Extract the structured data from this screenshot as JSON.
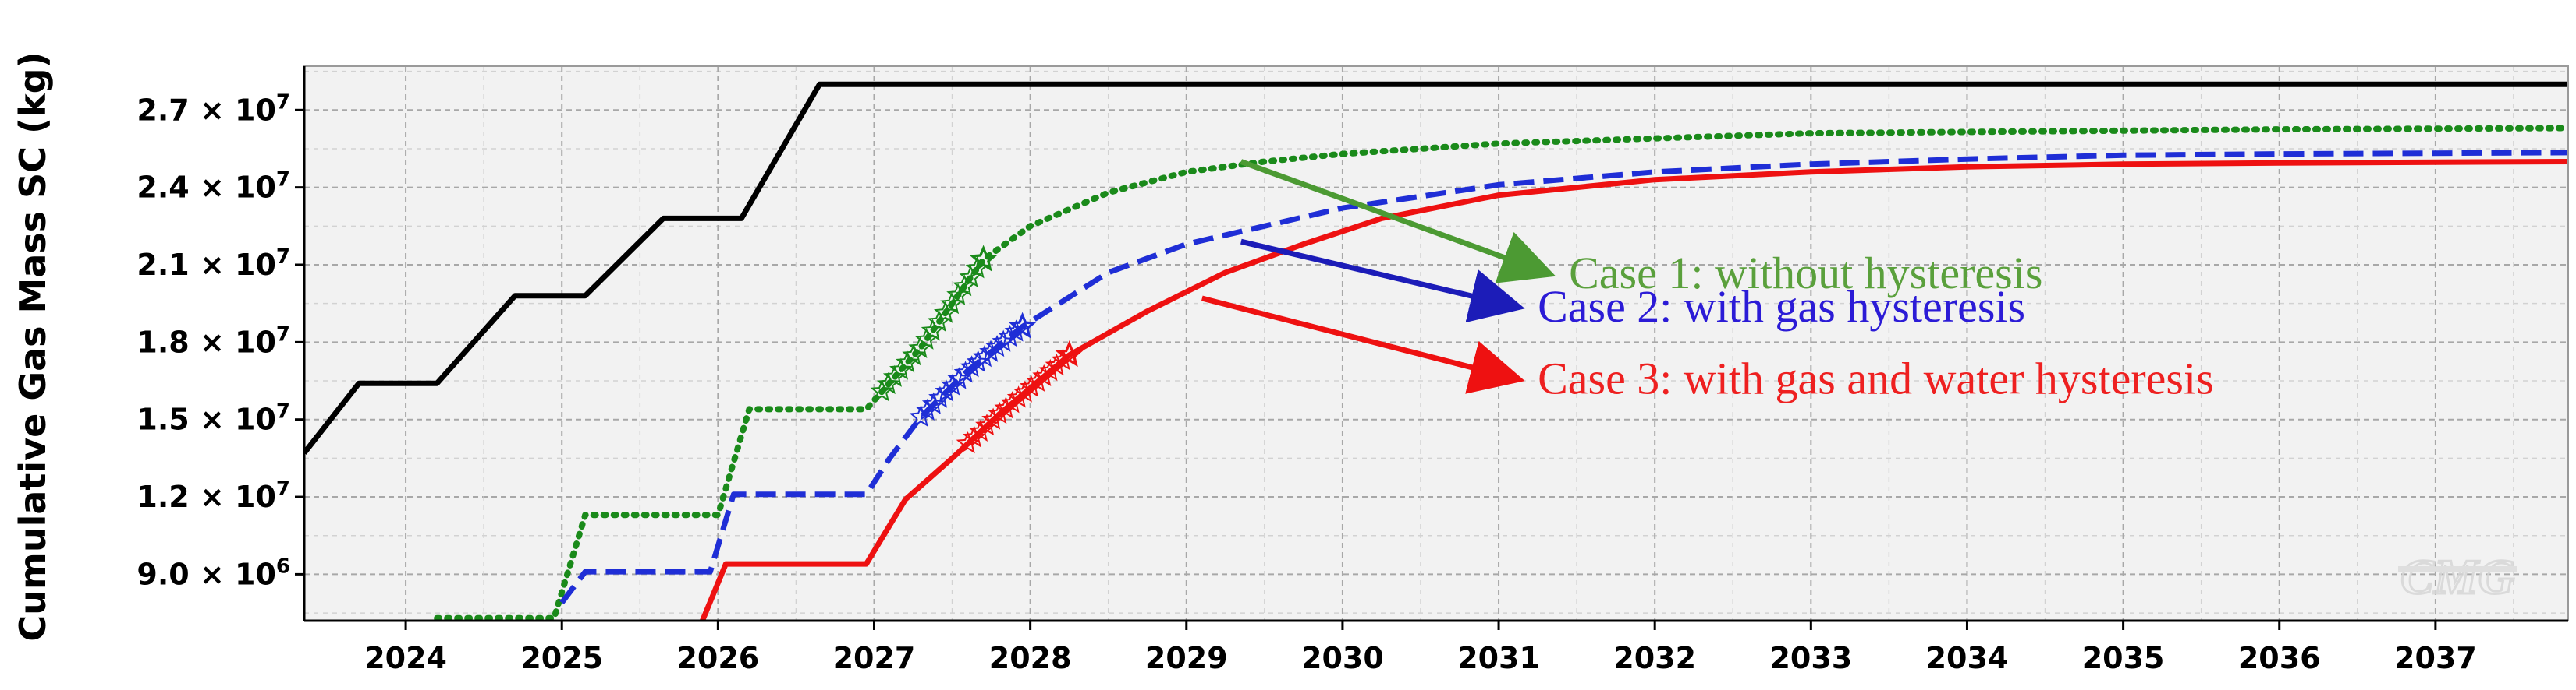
{
  "chart_data": {
    "type": "line",
    "ylabel": "Cumulative Gas Mass SC (kg)",
    "xlabel": "",
    "xlim": [
      2023.35,
      2037.85
    ],
    "ylim": [
      7200000,
      28700000
    ],
    "y_ticks": [
      {
        "value": 9000000,
        "mantissa": "9.0",
        "exponent": "6"
      },
      {
        "value": 12000000,
        "mantissa": "1.2",
        "exponent": "7"
      },
      {
        "value": 15000000,
        "mantissa": "1.5",
        "exponent": "7"
      },
      {
        "value": 18000000,
        "mantissa": "1.8",
        "exponent": "7"
      },
      {
        "value": 21000000,
        "mantissa": "2.1",
        "exponent": "7"
      },
      {
        "value": 24000000,
        "mantissa": "2.4",
        "exponent": "7"
      },
      {
        "value": 27000000,
        "mantissa": "2.7",
        "exponent": "7"
      }
    ],
    "y_tick_prefix": " × 10",
    "x_ticks": [
      "2024",
      "2025",
      "2026",
      "2027",
      "2028",
      "2029",
      "2030",
      "2031",
      "2032",
      "2033",
      "2034",
      "2035",
      "2036",
      "2037"
    ],
    "grid": true,
    "series": [
      {
        "color": "#000000",
        "dash": "solid",
        "points": [
          [
            2023.35,
            13700000
          ],
          [
            2023.7,
            16400000
          ],
          [
            2024.2,
            16400000
          ],
          [
            2024.7,
            19800000
          ],
          [
            2025.15,
            19800000
          ],
          [
            2025.65,
            22800000
          ],
          [
            2026.15,
            22800000
          ],
          [
            2026.65,
            28000000
          ],
          [
            2037.85,
            28000000
          ]
        ]
      },
      {
        "color": "#1a8a1a",
        "dash": "dotted",
        "marker_x": 2027.7,
        "points": [
          [
            2024.2,
            7300000
          ],
          [
            2024.95,
            7300000
          ],
          [
            2025.15,
            11300000
          ],
          [
            2026.0,
            11300000
          ],
          [
            2026.2,
            15400000
          ],
          [
            2026.95,
            15400000
          ],
          [
            2027.3,
            17800000
          ],
          [
            2027.7,
            21200000
          ],
          [
            2028.0,
            22500000
          ],
          [
            2028.5,
            23800000
          ],
          [
            2029.0,
            24600000
          ],
          [
            2029.5,
            25000000
          ],
          [
            2030.0,
            25300000
          ],
          [
            2031.0,
            25700000
          ],
          [
            2032.0,
            25900000
          ],
          [
            2033.0,
            26100000
          ],
          [
            2034.0,
            26150000
          ],
          [
            2035.0,
            26200000
          ],
          [
            2036.0,
            26250000
          ],
          [
            2037.85,
            26300000
          ]
        ]
      },
      {
        "color": "#1f2ed6",
        "dash": "dashed",
        "marker_x": 2027.95,
        "points": [
          [
            2025.0,
            7900000
          ],
          [
            2025.15,
            9100000
          ],
          [
            2025.95,
            9100000
          ],
          [
            2026.1,
            12100000
          ],
          [
            2026.95,
            12100000
          ],
          [
            2027.1,
            13500000
          ],
          [
            2027.3,
            15100000
          ],
          [
            2027.6,
            16900000
          ],
          [
            2027.95,
            18600000
          ],
          [
            2028.5,
            20700000
          ],
          [
            2029.0,
            21800000
          ],
          [
            2029.5,
            22500000
          ],
          [
            2030.0,
            23200000
          ],
          [
            2031.0,
            24100000
          ],
          [
            2032.0,
            24600000
          ],
          [
            2033.0,
            24900000
          ],
          [
            2034.0,
            25100000
          ],
          [
            2035.0,
            25250000
          ],
          [
            2036.0,
            25300000
          ],
          [
            2037.85,
            25350000
          ]
        ]
      },
      {
        "color": "#ee1111",
        "dash": "solid",
        "marker_x": 2028.25,
        "points": [
          [
            2025.9,
            7200000
          ],
          [
            2026.05,
            9400000
          ],
          [
            2026.95,
            9400000
          ],
          [
            2027.2,
            11900000
          ],
          [
            2027.5,
            13500000
          ],
          [
            2027.8,
            15200000
          ],
          [
            2028.25,
            17500000
          ],
          [
            2028.75,
            19200000
          ],
          [
            2029.25,
            20700000
          ],
          [
            2029.75,
            21800000
          ],
          [
            2030.25,
            22800000
          ],
          [
            2031.0,
            23700000
          ],
          [
            2032.0,
            24300000
          ],
          [
            2033.0,
            24600000
          ],
          [
            2034.0,
            24800000
          ],
          [
            2035.0,
            24900000
          ],
          [
            2036.0,
            24950000
          ],
          [
            2037.85,
            25000000
          ]
        ]
      }
    ],
    "annotations": [
      {
        "text": "Case 1: without hysteresis",
        "color": "#5aa03c",
        "arrow_color": "#4c9a33",
        "from": [
          2029.35,
          25000000
        ],
        "to": [
          2031.3,
          20700000
        ]
      },
      {
        "text": "Case 2: with gas hysteresis",
        "color": "#2b1bd6",
        "arrow_color": "#1c1cb8",
        "from": [
          2029.35,
          21900000
        ],
        "to": [
          2031.1,
          19400000
        ]
      },
      {
        "text": "Case 3: with gas and water hysteresis",
        "color": "#ee2020",
        "arrow_color": "#ee1111",
        "from": [
          2029.1,
          19700000
        ],
        "to": [
          2031.1,
          16600000
        ]
      }
    ],
    "logo": "CMG"
  }
}
